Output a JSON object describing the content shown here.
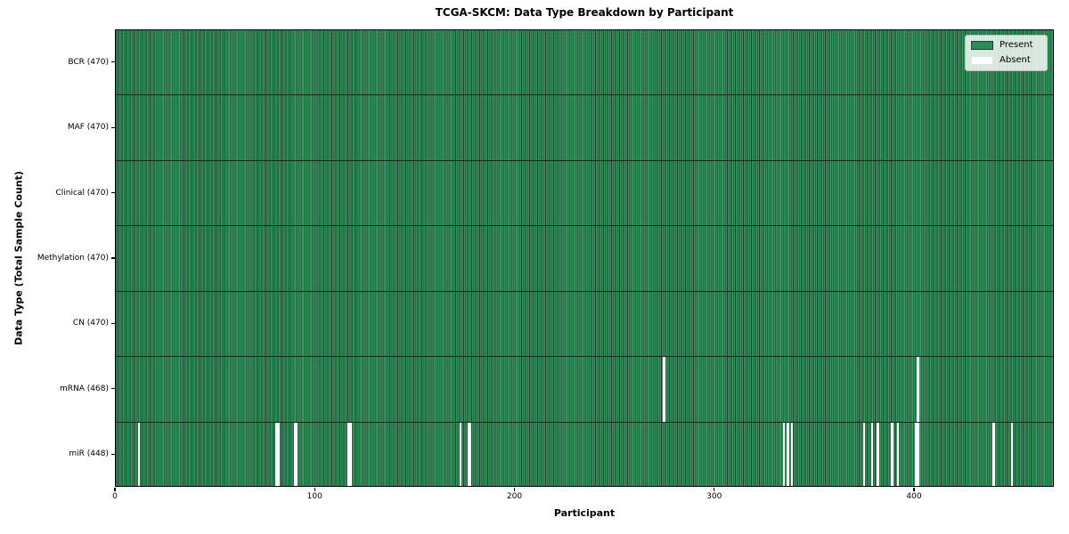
{
  "chart_data": {
    "type": "heatmap",
    "title": "TCGA-SKCM: Data Type Breakdown by Participant",
    "xlabel": "Participant",
    "ylabel": "Data Type (Total Sample Count)",
    "x_ticks": [
      0,
      100,
      200,
      300,
      400
    ],
    "x_range": [
      0,
      470
    ],
    "n_participants": 470,
    "grid": false,
    "colors": {
      "present": "#2e8b57",
      "present_edge": "#16462b",
      "present_light": "#3f9a67",
      "absent": "#ffffff",
      "row_divider": "#0d2e1b"
    },
    "legend": {
      "position": "upper-right",
      "items": [
        {
          "label": "Present",
          "color": "#2e8b57"
        },
        {
          "label": "Absent",
          "color": "#ffffff"
        }
      ]
    },
    "rows": [
      {
        "data_type": "BCR",
        "label": "BCR (470)",
        "present_count": 470,
        "absent_indices": []
      },
      {
        "data_type": "MAF",
        "label": "MAF (470)",
        "present_count": 470,
        "absent_indices": []
      },
      {
        "data_type": "Clinical",
        "label": "Clinical (470)",
        "present_count": 470,
        "absent_indices": []
      },
      {
        "data_type": "Methylation",
        "label": "Methylation (470)",
        "present_count": 470,
        "absent_indices": []
      },
      {
        "data_type": "CN",
        "label": "CN (470)",
        "present_count": 470,
        "absent_indices": []
      },
      {
        "data_type": "mRNA",
        "label": "mRNA (468)",
        "present_count": 468,
        "absent_indices": [
          274,
          401
        ]
      },
      {
        "data_type": "miR",
        "label": "miR (448)",
        "present_count": 448,
        "absent_indices": [
          11,
          80,
          81,
          89,
          90,
          116,
          117,
          172,
          176,
          177,
          334,
          336,
          338,
          374,
          378,
          381,
          388,
          391,
          400,
          401,
          439,
          448
        ]
      }
    ]
  }
}
